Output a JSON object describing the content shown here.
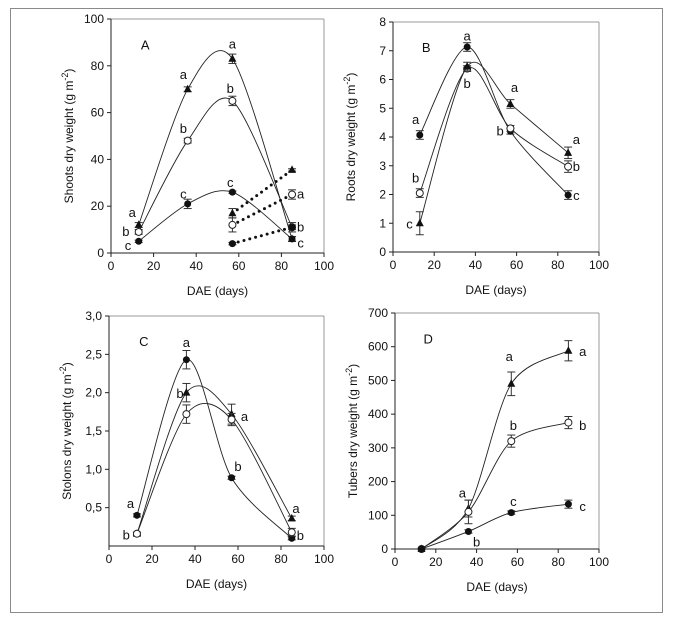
{
  "chart_data": [
    {
      "type": "line",
      "panel_label": "A",
      "xlabel": "DAE (days)",
      "ylabel": {
        "main": "Shoots dry weight  (g m",
        "sup": "-2",
        "end": ")"
      },
      "xlim": [
        0,
        100
      ],
      "ylim": [
        0,
        100
      ],
      "xticks": [
        0,
        20,
        40,
        60,
        80,
        100
      ],
      "yticks": [
        0,
        20,
        40,
        60,
        80,
        100
      ],
      "ytick_labels": [
        "0",
        "20",
        "40",
        "60",
        "80",
        "100"
      ],
      "series": [
        {
          "marker": "triangle",
          "style": "solid",
          "x": [
            13,
            36,
            57,
            85
          ],
          "y": [
            12,
            70,
            83,
            6
          ],
          "err": [
            1,
            1,
            2,
            1
          ]
        },
        {
          "marker": "open-circle",
          "style": "solid",
          "x": [
            13,
            36,
            57,
            85
          ],
          "y": [
            9,
            48,
            65,
            11
          ],
          "err": [
            1,
            1,
            2,
            2
          ]
        },
        {
          "marker": "filled-circle",
          "style": "solid",
          "x": [
            13,
            36,
            57,
            85
          ],
          "y": [
            5,
            21,
            26,
            6
          ],
          "err": [
            0.5,
            2,
            0.5,
            1
          ]
        },
        {
          "marker": "triangle",
          "style": "dotted",
          "x": [
            57,
            85
          ],
          "y": [
            17,
            35.5
          ],
          "err": [
            2,
            0.5
          ]
        },
        {
          "marker": "open-circle",
          "style": "dotted",
          "x": [
            57,
            85
          ],
          "y": [
            12,
            25
          ],
          "err": [
            3,
            2
          ]
        },
        {
          "marker": "filled-circle",
          "style": "dotted",
          "x": [
            57,
            85
          ],
          "y": [
            4,
            11
          ],
          "err": [
            0.5,
            1
          ]
        }
      ],
      "letters": [
        {
          "t": "a",
          "x": 10,
          "y": 17
        },
        {
          "t": "b",
          "x": 7,
          "y": 9
        },
        {
          "t": "c",
          "x": 8,
          "y": 3
        },
        {
          "t": "a",
          "x": 34,
          "y": 76
        },
        {
          "t": "b",
          "x": 34,
          "y": 53
        },
        {
          "t": "c",
          "x": 34,
          "y": 25
        },
        {
          "t": "a",
          "x": 57,
          "y": 89
        },
        {
          "t": "b",
          "x": 56,
          "y": 70
        },
        {
          "t": "c",
          "x": 56,
          "y": 30
        },
        {
          "t": "a",
          "x": 89,
          "y": 25
        },
        {
          "t": "b",
          "x": 89,
          "y": 11
        },
        {
          "t": "c",
          "x": 89,
          "y": 4
        }
      ]
    },
    {
      "type": "line",
      "panel_label": "B",
      "xlabel": "DAE (days)",
      "ylabel": {
        "main": "Roots dry weight  (g m",
        "sup": "-2",
        "end": ")"
      },
      "xlim": [
        0,
        100
      ],
      "ylim": [
        0,
        8
      ],
      "xticks": [
        0,
        20,
        40,
        60,
        80,
        100
      ],
      "yticks": [
        0,
        1,
        2,
        3,
        4,
        5,
        6,
        7,
        8
      ],
      "ytick_labels": [
        "0",
        "1",
        "2",
        "3",
        "4",
        "5",
        "6",
        "7",
        "8"
      ],
      "series": [
        {
          "marker": "filled-circle",
          "style": "solid",
          "x": [
            13,
            36,
            57,
            85
          ],
          "y": [
            4.07,
            7.13,
            4.2,
            1.98
          ],
          "err": [
            0.15,
            0.15,
            0.1,
            0.15
          ]
        },
        {
          "marker": "open-circle",
          "style": "solid",
          "x": [
            13,
            36,
            57,
            85
          ],
          "y": [
            2.05,
            6.38,
            4.3,
            2.97
          ],
          "err": [
            0.15,
            0.1,
            0.1,
            0.2
          ]
        },
        {
          "marker": "triangle",
          "style": "solid",
          "x": [
            13,
            36,
            57,
            85
          ],
          "y": [
            1.0,
            6.45,
            5.15,
            3.45
          ],
          "err": [
            0.4,
            0.15,
            0.15,
            0.2
          ]
        }
      ],
      "letters": [
        {
          "t": "a",
          "x": 11,
          "y": 4.6
        },
        {
          "t": "b",
          "x": 11,
          "y": 2.55
        },
        {
          "t": "c",
          "x": 8,
          "y": 0.95
        },
        {
          "t": "a",
          "x": 36,
          "y": 7.5
        },
        {
          "t": "b",
          "x": 36,
          "y": 5.85
        },
        {
          "t": "a",
          "x": 59,
          "y": 5.7
        },
        {
          "t": "b",
          "x": 52,
          "y": 4.2
        },
        {
          "t": "a",
          "x": 89,
          "y": 3.9
        },
        {
          "t": "b",
          "x": 89,
          "y": 2.95
        },
        {
          "t": "c",
          "x": 89,
          "y": 1.95
        }
      ]
    },
    {
      "type": "line",
      "panel_label": "C",
      "xlabel": "DAE (days)",
      "ylabel": {
        "main": "Stolons dry weight  (g m",
        "sup": "-2",
        "end": ")"
      },
      "xlim": [
        0,
        100
      ],
      "ylim": [
        0,
        3
      ],
      "xticks": [
        0,
        20,
        40,
        60,
        80,
        100
      ],
      "yticks": [
        0.5,
        1.0,
        1.5,
        2.0,
        2.5,
        3.0
      ],
      "ytick_labels": [
        "0,5",
        "1,0",
        "1,5",
        "2,0",
        "2,5",
        "3,0"
      ],
      "series": [
        {
          "marker": "filled-circle",
          "style": "solid",
          "x": [
            13,
            36,
            57,
            85
          ],
          "y": [
            0.4,
            2.43,
            0.89,
            0.1
          ],
          "err": [
            0.02,
            0.12,
            0.02,
            0.02
          ]
        },
        {
          "marker": "triangle",
          "style": "solid",
          "x": [
            13,
            36,
            57,
            85
          ],
          "y": [
            0.16,
            2.0,
            1.72,
            0.36
          ],
          "err": [
            0.02,
            0.12,
            0.13,
            0.03
          ]
        },
        {
          "marker": "open-circle",
          "style": "solid",
          "x": [
            13,
            36,
            57,
            85
          ],
          "y": [
            0.16,
            1.72,
            1.65,
            0.18
          ],
          "err": [
            0.02,
            0.12,
            0.08,
            0.05
          ]
        }
      ],
      "letters": [
        {
          "t": "a",
          "x": 10,
          "y": 0.55
        },
        {
          "t": "b",
          "x": 8,
          "y": 0.14
        },
        {
          "t": "a",
          "x": 36,
          "y": 2.65
        },
        {
          "t": "b",
          "x": 33,
          "y": 1.98
        },
        {
          "t": "a",
          "x": 63,
          "y": 1.68
        },
        {
          "t": "b",
          "x": 60,
          "y": 1.03
        },
        {
          "t": "a",
          "x": 87,
          "y": 0.48
        },
        {
          "t": "b",
          "x": 89,
          "y": 0.13
        }
      ]
    },
    {
      "type": "line",
      "panel_label": "D",
      "xlabel": "DAE (days)",
      "ylabel": {
        "main": "Tubers dry weight  (g m",
        "sup": "-2",
        "end": ")"
      },
      "xlim": [
        0,
        100
      ],
      "ylim": [
        0,
        700
      ],
      "xticks": [
        0,
        20,
        40,
        60,
        80,
        100
      ],
      "yticks": [
        0,
        100,
        200,
        300,
        400,
        500,
        600,
        700
      ],
      "ytick_labels": [
        "0",
        "100",
        "200",
        "300",
        "400",
        "500",
        "600",
        "700"
      ],
      "series": [
        {
          "marker": "triangle",
          "style": "solid",
          "x": [
            13,
            36,
            57,
            85
          ],
          "y": [
            0,
            120,
            490,
            588
          ],
          "err": [
            0,
            25,
            35,
            30
          ]
        },
        {
          "marker": "open-circle",
          "style": "solid",
          "x": [
            13,
            36,
            57,
            85
          ],
          "y": [
            0,
            110,
            320,
            375
          ],
          "err": [
            0,
            35,
            18,
            18
          ]
        },
        {
          "marker": "filled-circle",
          "style": "solid",
          "x": [
            13,
            36,
            57,
            85
          ],
          "y": [
            0,
            52,
            108,
            133
          ],
          "err": [
            0,
            5,
            5,
            12
          ]
        }
      ],
      "letters": [
        {
          "t": "a",
          "x": 33,
          "y": 165
        },
        {
          "t": "b",
          "x": 40,
          "y": 20
        },
        {
          "t": "a",
          "x": 56,
          "y": 570
        },
        {
          "t": "b",
          "x": 58,
          "y": 365
        },
        {
          "t": "c",
          "x": 58,
          "y": 140
        },
        {
          "t": "a",
          "x": 92,
          "y": 585
        },
        {
          "t": "b",
          "x": 92,
          "y": 365
        },
        {
          "t": "c",
          "x": 92,
          "y": 125
        }
      ]
    }
  ]
}
